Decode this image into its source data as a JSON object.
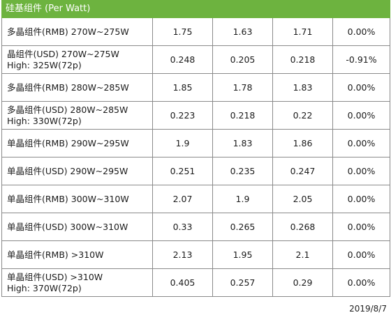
{
  "header": {
    "title": "硅基组件 (Per Watt)"
  },
  "rows": [
    {
      "label": "多晶组件(RMB) 270W~275W",
      "values": [
        "1.75",
        "1.63",
        "1.71",
        "0.00%"
      ]
    },
    {
      "label": "晶组件(USD) 270W~275W\nHigh: 325W(72p)",
      "values": [
        "0.248",
        "0.205",
        "0.218",
        "-0.91%"
      ]
    },
    {
      "label": "多晶组件(RMB) 280W~285W",
      "values": [
        "1.85",
        "1.78",
        "1.83",
        "0.00%"
      ]
    },
    {
      "label": "多晶组件(USD) 280W~285W\nHigh: 330W(72p)",
      "values": [
        "0.223",
        "0.218",
        "0.22",
        "0.00%"
      ]
    },
    {
      "label": "单晶组件(RMB) 290W~295W",
      "values": [
        "1.9",
        "1.83",
        "1.86",
        "0.00%"
      ]
    },
    {
      "label": "单晶组件(USD) 290W~295W",
      "values": [
        "0.251",
        "0.235",
        "0.247",
        "0.00%"
      ]
    },
    {
      "label": "单晶组件(RMB) 300W~310W",
      "values": [
        "2.07",
        "1.9",
        "2.05",
        "0.00%"
      ]
    },
    {
      "label": "单晶组件(USD) 300W~310W",
      "values": [
        "0.33",
        "0.265",
        "0.268",
        "0.00%"
      ]
    },
    {
      "label": "单晶组件(RMB) >310W",
      "values": [
        "2.13",
        "1.95",
        "2.1",
        "0.00%"
      ]
    },
    {
      "label": "单晶组件(USD) >310W\nHigh: 370W(72p)",
      "values": [
        "0.405",
        "0.257",
        "0.29",
        "0.00%"
      ]
    }
  ],
  "footer": {
    "date": "2019/8/7"
  },
  "colors": {
    "header_bg": "#6db33f",
    "header_text": "#ffffff",
    "border": "#8a8a8a"
  }
}
